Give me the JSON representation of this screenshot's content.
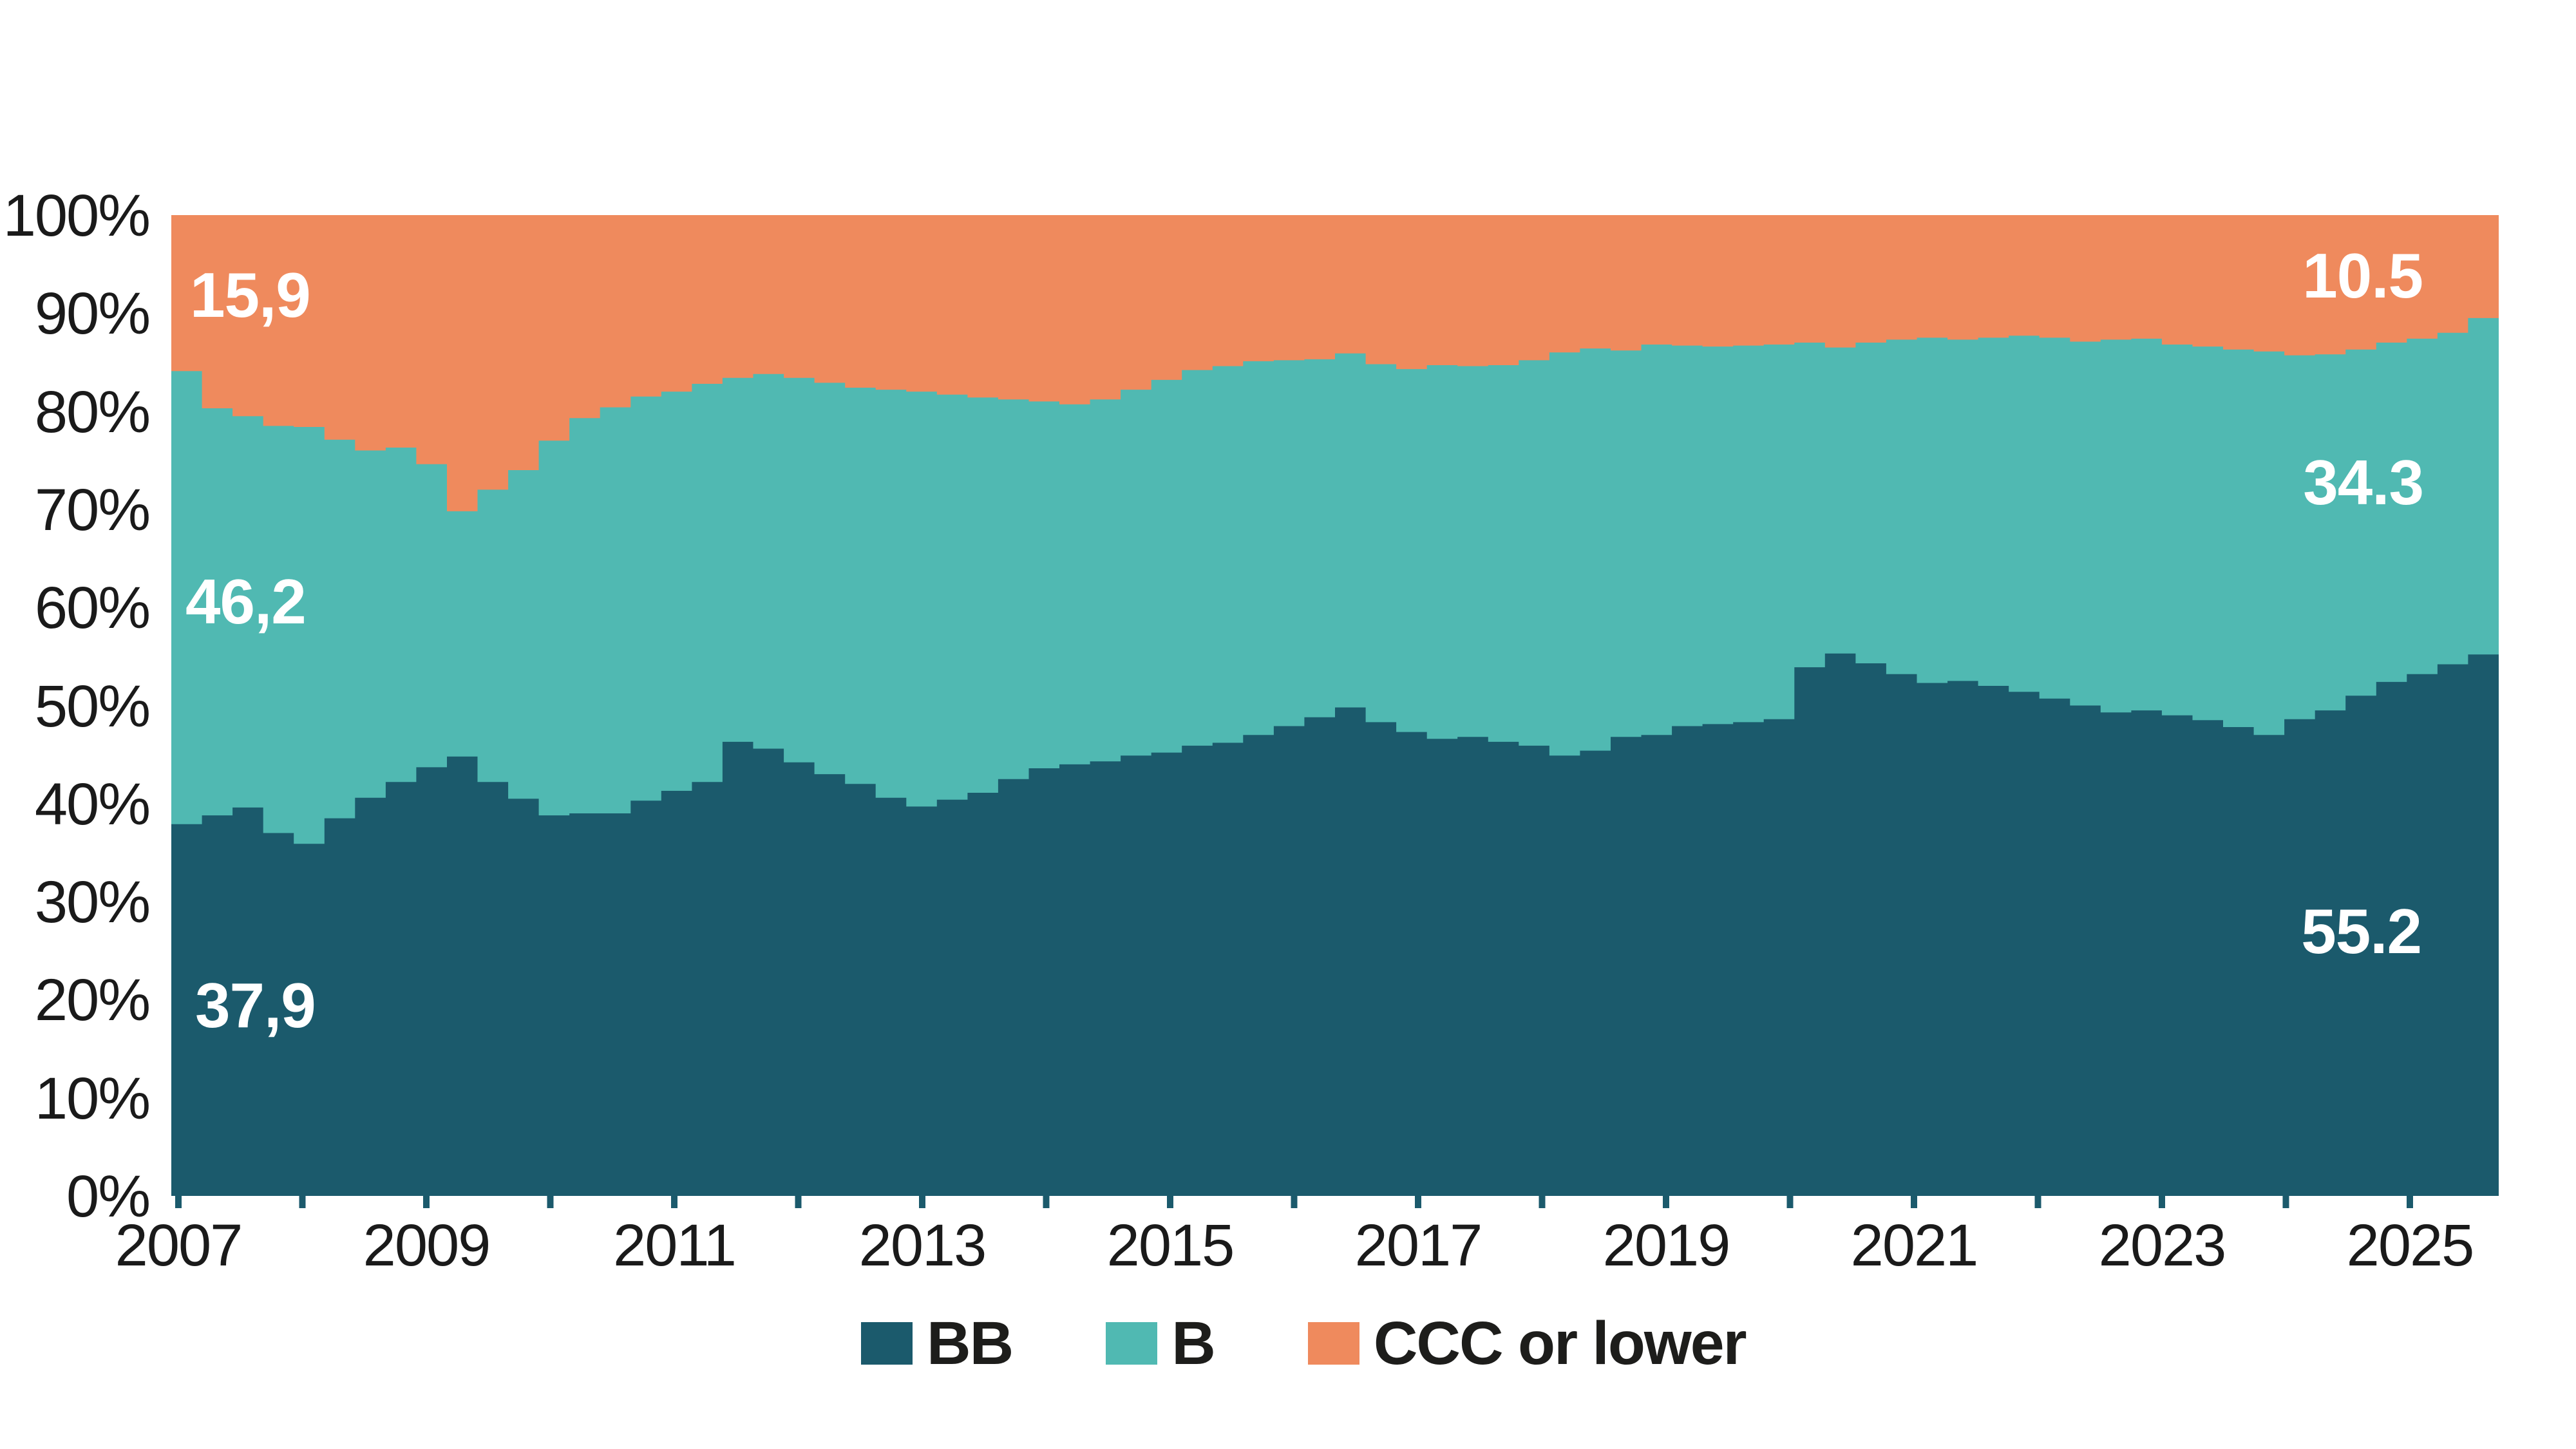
{
  "chart_data": {
    "type": "area",
    "stacked": true,
    "title": "",
    "value_unit": "%",
    "x_start_year": 2007,
    "x_step_years": 0.25,
    "grid": false,
    "x_axis": {
      "labels": [
        "2007",
        "2009",
        "2011",
        "2013",
        "2015",
        "2017",
        "2019",
        "2021",
        "2023",
        "2025"
      ],
      "tick_years": [
        2007,
        2008,
        2009,
        2010,
        2011,
        2012,
        2013,
        2014,
        2015,
        2016,
        2017,
        2018,
        2019,
        2020,
        2021,
        2022,
        2023,
        2024,
        2025
      ]
    },
    "y_axis": {
      "labels": [
        "0%",
        "10%",
        "20%",
        "30%",
        "40%",
        "50%",
        "60%",
        "70%",
        "80%",
        "90%",
        "100%"
      ],
      "values": [
        0,
        10,
        20,
        30,
        40,
        50,
        60,
        70,
        80,
        90,
        100
      ],
      "range": [
        0,
        100
      ]
    },
    "series": [
      {
        "name": "BB",
        "color": "#1B5A6C",
        "values": [
          37.9,
          38.8,
          39.6,
          37.0,
          35.9,
          38.5,
          40.6,
          42.2,
          43.7,
          44.8,
          42.2,
          40.5,
          38.8,
          39.0,
          39.0,
          40.3,
          41.3,
          42.2,
          46.3,
          45.6,
          44.2,
          43.0,
          42.0,
          40.6,
          39.7,
          40.4,
          41.1,
          42.5,
          43.6,
          44.0,
          44.3,
          44.9,
          45.2,
          45.9,
          46.2,
          47.0,
          47.9,
          48.8,
          49.8,
          48.3,
          47.3,
          46.6,
          46.8,
          46.3,
          45.9,
          44.9,
          45.4,
          46.8,
          47.0,
          47.9,
          48.1,
          48.3,
          48.6,
          53.9,
          55.3,
          54.3,
          53.2,
          52.3,
          52.5,
          52.0,
          51.4,
          50.7,
          50.0,
          49.3,
          49.5,
          49.0,
          48.5,
          47.8,
          47.0,
          48.6,
          49.5,
          51.0,
          52.4,
          53.2,
          54.2,
          55.2
        ]
      },
      {
        "name": "B",
        "color": "#50B9B2",
        "values": [
          46.2,
          41.5,
          39.9,
          41.5,
          42.5,
          38.6,
          35.4,
          34.1,
          30.9,
          25.0,
          29.8,
          33.5,
          38.2,
          40.3,
          41.4,
          41.2,
          40.7,
          40.6,
          37.1,
          38.2,
          39.2,
          39.9,
          40.4,
          41.6,
          42.3,
          41.3,
          40.3,
          38.7,
          37.4,
          36.7,
          36.9,
          37.3,
          38.0,
          38.3,
          38.4,
          38.1,
          37.3,
          36.5,
          36.1,
          36.5,
          37.0,
          38.1,
          37.8,
          38.4,
          39.3,
          41.1,
          41.0,
          39.4,
          39.8,
          38.8,
          38.5,
          38.4,
          38.2,
          33.1,
          31.2,
          32.7,
          34.1,
          35.2,
          34.8,
          35.5,
          36.3,
          36.8,
          37.1,
          38.0,
          37.9,
          37.8,
          38.1,
          38.5,
          39.1,
          37.1,
          36.3,
          35.3,
          34.6,
          34.2,
          33.8,
          34.3
        ]
      },
      {
        "name": "CCC or lower",
        "color": "#EF8A5D",
        "values": [
          15.9,
          19.7,
          20.5,
          21.5,
          21.6,
          22.9,
          24.0,
          23.7,
          25.4,
          30.2,
          28.0,
          26.0,
          23.0,
          20.7,
          19.6,
          18.5,
          18.0,
          17.2,
          16.6,
          16.2,
          16.6,
          17.1,
          17.6,
          17.8,
          18.0,
          18.3,
          18.6,
          18.8,
          19.0,
          19.3,
          18.8,
          17.8,
          16.8,
          15.8,
          15.4,
          14.9,
          14.8,
          14.7,
          14.1,
          15.2,
          15.7,
          15.3,
          15.4,
          15.3,
          14.8,
          14.0,
          13.6,
          13.8,
          13.2,
          13.3,
          13.4,
          13.3,
          13.2,
          13.0,
          13.5,
          13.0,
          12.7,
          12.5,
          12.7,
          12.5,
          12.3,
          12.5,
          12.9,
          12.7,
          12.6,
          13.2,
          13.4,
          13.7,
          13.9,
          14.3,
          14.2,
          13.7,
          13.0,
          12.6,
          12.0,
          10.5
        ]
      }
    ],
    "annotations": {
      "start": [
        {
          "series": "CCC or lower",
          "text": "15,9",
          "color": "#ffffff"
        },
        {
          "series": "B",
          "text": "46,2",
          "color": "#ffffff"
        },
        {
          "series": "BB",
          "text": "37,9",
          "color": "#ffffff"
        }
      ],
      "end": [
        {
          "series": "CCC or lower",
          "text": "10.5",
          "color": "#ffffff"
        },
        {
          "series": "B",
          "text": "34.3",
          "color": "#ffffff"
        },
        {
          "series": "BB",
          "text": "55.2",
          "color": "#ffffff"
        }
      ]
    },
    "legend": {
      "position": "bottom",
      "items": [
        {
          "label": "BB",
          "color": "#1B5A6C"
        },
        {
          "label": "B",
          "color": "#50B9B2"
        },
        {
          "label": "CCC or lower",
          "color": "#EF8A5D"
        }
      ]
    }
  }
}
